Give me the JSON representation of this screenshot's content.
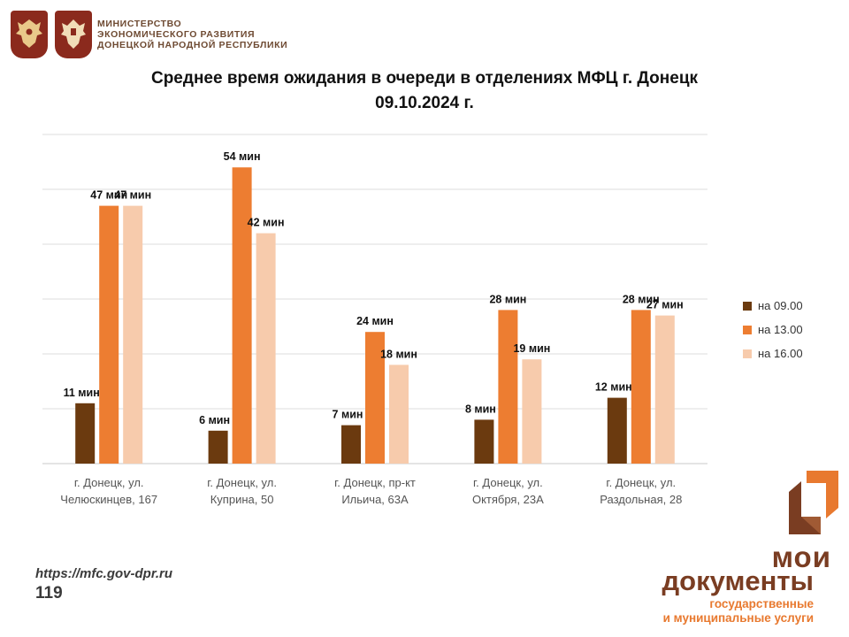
{
  "header": {
    "ministry_lines": [
      "МИНИСТЕРСТВО",
      "ЭКОНОМИЧЕСКОГО РАЗВИТИЯ",
      "ДОНЕЦКОЙ НАРОДНОЙ РЕСПУБЛИКИ"
    ],
    "emblems": [
      "russia-coat-of-arms-icon",
      "dpr-coat-of-arms-icon"
    ]
  },
  "title_line1": "Среднее время ожидания в очереди в отделениях МФЦ г. Донецк",
  "title_line2": "09.10.2024 г.",
  "chart_data": {
    "type": "bar",
    "categories": [
      [
        "г. Донецк, ул.",
        "Челюскинцев, 167"
      ],
      [
        "г. Донецк, ул.",
        "Куприна, 50"
      ],
      [
        "г. Донецк, пр-кт",
        "Ильича, 63А"
      ],
      [
        "г. Донецк, ул.",
        "Октября, 23А"
      ],
      [
        "г. Донецк, ул.",
        "Раздольная, 28"
      ]
    ],
    "series": [
      {
        "name": "на 09.00",
        "color": "#6b3a0f",
        "values": [
          11,
          6,
          7,
          8,
          12
        ]
      },
      {
        "name": "на 13.00",
        "color": "#ed7d31",
        "values": [
          47,
          54,
          24,
          28,
          28
        ]
      },
      {
        "name": "на 16.00",
        "color": "#f7cbac",
        "values": [
          47,
          42,
          18,
          19,
          27
        ]
      }
    ],
    "value_suffix": " мин",
    "ylim": [
      0,
      60
    ],
    "gridlines": [
      0,
      10,
      20,
      30,
      40,
      50,
      60
    ],
    "legend_position": "right"
  },
  "footer": {
    "url": "https://mfc.gov-dpr.ru",
    "page_number": "119"
  },
  "logo": {
    "line1": "мои",
    "line2": "документы",
    "sub1": "государственные",
    "sub2": "и муниципальные услуги",
    "colors": {
      "brown": "#7a3d22",
      "orange": "#e8792f"
    }
  }
}
